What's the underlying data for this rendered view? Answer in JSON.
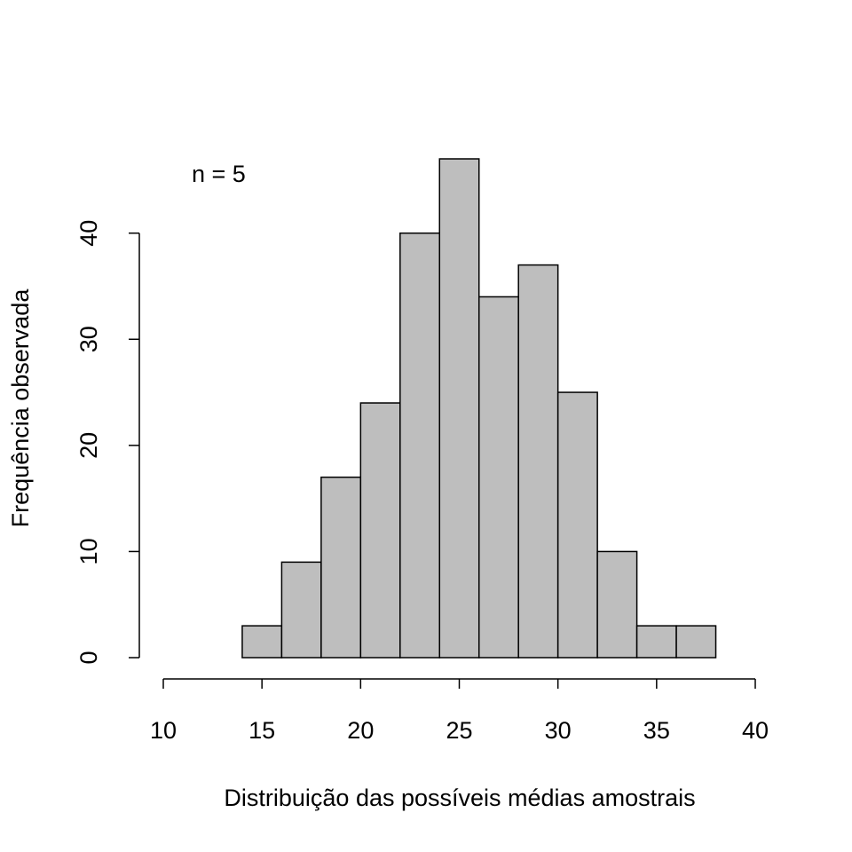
{
  "chart_data": {
    "type": "histogram",
    "xlabel": "Distribuição das possíveis médias amostrais",
    "ylabel": "Frequência observada",
    "annotation": "n =  5",
    "bins": [
      14,
      16,
      18,
      20,
      22,
      24,
      26,
      28,
      30,
      32,
      34,
      36,
      38
    ],
    "values": [
      3,
      9,
      17,
      24,
      40,
      47,
      34,
      37,
      25,
      10,
      3,
      3
    ],
    "color": "#bebebe",
    "xlim": [
      10,
      40
    ],
    "xticks": [
      10,
      15,
      20,
      25,
      30,
      35,
      40
    ],
    "ylim": [
      0,
      47
    ],
    "yticks": [
      0,
      10,
      20,
      30,
      40
    ]
  }
}
